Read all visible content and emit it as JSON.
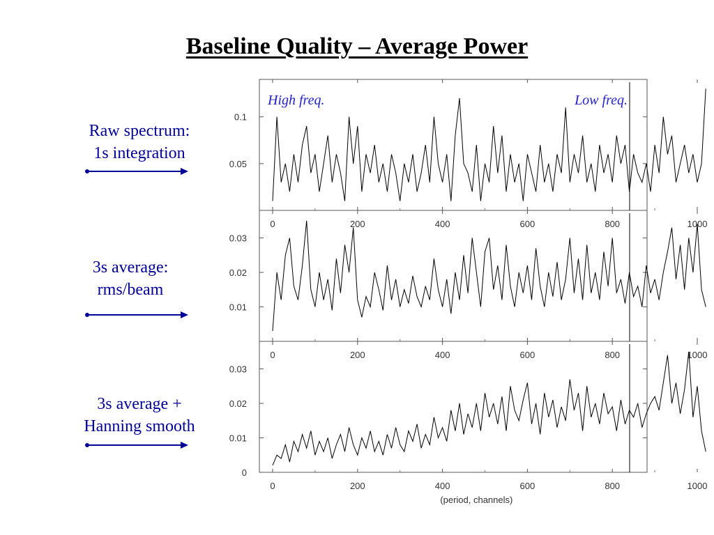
{
  "slide": {
    "title": "Baseline Quality – Average Power"
  },
  "labels": [
    {
      "lines": [
        "Raw spectrum:",
        "1s integration"
      ]
    },
    {
      "lines": [
        "3s average:",
        "rms/beam"
      ]
    },
    {
      "lines": [
        "3s average +",
        "Hanning smooth"
      ]
    }
  ],
  "colors": {
    "label_text": "#000099",
    "arrow": "#000099",
    "annotation": "#2222cc",
    "trace": "#000000"
  },
  "chart_data": [
    {
      "type": "line",
      "title": "",
      "xlabel": "",
      "ylabel": "",
      "xlim": [
        0,
        1024
      ],
      "ylim": [
        0,
        0.14
      ],
      "xticks": [
        0,
        200,
        400,
        600,
        800,
        1000
      ],
      "yticks": [
        0.05,
        0.1
      ],
      "ytick_labels": [
        "0.05",
        "0.1"
      ],
      "annotations": [
        "High freq.",
        "Low freq."
      ],
      "series": [
        {
          "x": [
            0,
            10,
            20,
            30,
            40,
            50,
            60,
            70,
            80,
            90,
            100,
            110,
            120,
            130,
            140,
            150,
            160,
            170,
            180,
            190,
            200,
            210,
            220,
            230,
            240,
            250,
            260,
            270,
            280,
            290,
            300,
            310,
            320,
            330,
            340,
            350,
            360,
            370,
            380,
            390,
            400,
            410,
            420,
            430,
            440,
            450,
            460,
            470,
            480,
            490,
            500,
            510,
            520,
            530,
            540,
            550,
            560,
            570,
            580,
            590,
            600,
            610,
            620,
            630,
            640,
            650,
            660,
            670,
            680,
            690,
            700,
            710,
            720,
            730,
            740,
            750,
            760,
            770,
            780,
            790,
            800,
            810,
            820,
            830,
            840,
            850,
            860,
            870,
            880,
            890,
            900,
            910,
            920,
            930,
            940,
            950,
            960,
            970,
            980,
            990,
            1000,
            1010,
            1020
          ],
          "y": [
            0.01,
            0.1,
            0.03,
            0.05,
            0.02,
            0.06,
            0.03,
            0.07,
            0.09,
            0.04,
            0.06,
            0.02,
            0.05,
            0.08,
            0.03,
            0.06,
            0.04,
            0.01,
            0.1,
            0.05,
            0.09,
            0.02,
            0.06,
            0.04,
            0.07,
            0.03,
            0.05,
            0.02,
            0.06,
            0.04,
            0.01,
            0.05,
            0.03,
            0.06,
            0.02,
            0.04,
            0.07,
            0.03,
            0.1,
            0.05,
            0.03,
            0.06,
            0.01,
            0.08,
            0.12,
            0.05,
            0.04,
            0.02,
            0.07,
            0.01,
            0.05,
            0.03,
            0.09,
            0.04,
            0.08,
            0.02,
            0.06,
            0.03,
            0.05,
            0.01,
            0.06,
            0.04,
            0.02,
            0.07,
            0.03,
            0.05,
            0.02,
            0.06,
            0.04,
            0.11,
            0.03,
            0.06,
            0.04,
            0.08,
            0.03,
            0.05,
            0.02,
            0.07,
            0.04,
            0.06,
            0.03,
            0.08,
            0.05,
            0.07,
            0.02,
            0.06,
            0.04,
            0.03,
            0.05,
            0.02,
            0.07,
            0.04,
            0.1,
            0.06,
            0.08,
            0.03,
            0.05,
            0.07,
            0.04,
            0.06,
            0.03,
            0.05,
            0.13
          ]
        }
      ]
    },
    {
      "type": "line",
      "title": "",
      "xlabel": "",
      "ylabel": "",
      "xlim": [
        0,
        1024
      ],
      "ylim": [
        0,
        0.038
      ],
      "xticks": [
        0,
        200,
        400,
        600,
        800,
        1000
      ],
      "yticks": [
        0.01,
        0.02,
        0.03
      ],
      "ytick_labels": [
        "0.01",
        "0.02",
        "0.03"
      ],
      "series": [
        {
          "x": [
            0,
            10,
            20,
            30,
            40,
            50,
            60,
            70,
            80,
            90,
            100,
            110,
            120,
            130,
            140,
            150,
            160,
            170,
            180,
            190,
            200,
            210,
            220,
            230,
            240,
            250,
            260,
            270,
            280,
            290,
            300,
            310,
            320,
            330,
            340,
            350,
            360,
            370,
            380,
            390,
            400,
            410,
            420,
            430,
            440,
            450,
            460,
            470,
            480,
            490,
            500,
            510,
            520,
            530,
            540,
            550,
            560,
            570,
            580,
            590,
            600,
            610,
            620,
            630,
            640,
            650,
            660,
            670,
            680,
            690,
            700,
            710,
            720,
            730,
            740,
            750,
            760,
            770,
            780,
            790,
            800,
            810,
            820,
            830,
            840,
            850,
            860,
            870,
            880,
            890,
            900,
            910,
            920,
            930,
            940,
            950,
            960,
            970,
            980,
            990,
            1000,
            1010,
            1020
          ],
          "y": [
            0.003,
            0.02,
            0.012,
            0.025,
            0.03,
            0.016,
            0.012,
            0.022,
            0.035,
            0.015,
            0.01,
            0.02,
            0.012,
            0.018,
            0.009,
            0.024,
            0.014,
            0.028,
            0.02,
            0.033,
            0.012,
            0.007,
            0.013,
            0.01,
            0.02,
            0.015,
            0.009,
            0.022,
            0.012,
            0.018,
            0.01,
            0.015,
            0.011,
            0.019,
            0.013,
            0.01,
            0.016,
            0.012,
            0.024,
            0.015,
            0.01,
            0.018,
            0.008,
            0.02,
            0.012,
            0.025,
            0.014,
            0.03,
            0.02,
            0.01,
            0.026,
            0.03,
            0.015,
            0.022,
            0.012,
            0.028,
            0.016,
            0.01,
            0.02,
            0.014,
            0.022,
            0.012,
            0.027,
            0.016,
            0.01,
            0.02,
            0.013,
            0.023,
            0.012,
            0.018,
            0.03,
            0.014,
            0.024,
            0.012,
            0.028,
            0.014,
            0.02,
            0.012,
            0.026,
            0.016,
            0.03,
            0.014,
            0.018,
            0.011,
            0.02,
            0.013,
            0.016,
            0.01,
            0.022,
            0.014,
            0.018,
            0.012,
            0.02,
            0.026,
            0.033,
            0.018,
            0.028,
            0.015,
            0.03,
            0.02,
            0.034,
            0.015,
            0.01
          ]
        }
      ]
    },
    {
      "type": "line",
      "title": "",
      "xlabel": "(period, channels)",
      "ylabel": "",
      "xlim": [
        0,
        1024
      ],
      "ylim": [
        0,
        0.038
      ],
      "xticks": [
        0,
        200,
        400,
        600,
        800,
        1000
      ],
      "yticks": [
        0,
        0.01,
        0.02,
        0.03
      ],
      "ytick_labels": [
        "0",
        "0.01",
        "0.02",
        "0.03"
      ],
      "series": [
        {
          "x": [
            0,
            10,
            20,
            30,
            40,
            50,
            60,
            70,
            80,
            90,
            100,
            110,
            120,
            130,
            140,
            150,
            160,
            170,
            180,
            190,
            200,
            210,
            220,
            230,
            240,
            250,
            260,
            270,
            280,
            290,
            300,
            310,
            320,
            330,
            340,
            350,
            360,
            370,
            380,
            390,
            400,
            410,
            420,
            430,
            440,
            450,
            460,
            470,
            480,
            490,
            500,
            510,
            520,
            530,
            540,
            550,
            560,
            570,
            580,
            590,
            600,
            610,
            620,
            630,
            640,
            650,
            660,
            670,
            680,
            690,
            700,
            710,
            720,
            730,
            740,
            750,
            760,
            770,
            780,
            790,
            800,
            810,
            820,
            830,
            840,
            850,
            860,
            870,
            880,
            890,
            900,
            910,
            920,
            930,
            940,
            950,
            960,
            970,
            980,
            990,
            1000,
            1010,
            1020
          ],
          "y": [
            0.002,
            0.005,
            0.004,
            0.008,
            0.003,
            0.009,
            0.006,
            0.011,
            0.007,
            0.012,
            0.005,
            0.009,
            0.006,
            0.01,
            0.004,
            0.008,
            0.011,
            0.006,
            0.013,
            0.008,
            0.005,
            0.01,
            0.007,
            0.012,
            0.006,
            0.009,
            0.005,
            0.011,
            0.007,
            0.013,
            0.008,
            0.006,
            0.012,
            0.009,
            0.014,
            0.007,
            0.011,
            0.008,
            0.016,
            0.01,
            0.013,
            0.009,
            0.018,
            0.012,
            0.02,
            0.011,
            0.017,
            0.013,
            0.02,
            0.012,
            0.023,
            0.016,
            0.02,
            0.014,
            0.022,
            0.012,
            0.025,
            0.018,
            0.015,
            0.021,
            0.026,
            0.014,
            0.02,
            0.011,
            0.023,
            0.016,
            0.021,
            0.013,
            0.019,
            0.015,
            0.027,
            0.018,
            0.023,
            0.012,
            0.025,
            0.016,
            0.02,
            0.014,
            0.023,
            0.017,
            0.019,
            0.012,
            0.021,
            0.014,
            0.018,
            0.016,
            0.02,
            0.013,
            0.017,
            0.02,
            0.022,
            0.018,
            0.026,
            0.034,
            0.02,
            0.026,
            0.017,
            0.024,
            0.035,
            0.016,
            0.025,
            0.012,
            0.006
          ]
        }
      ]
    }
  ]
}
